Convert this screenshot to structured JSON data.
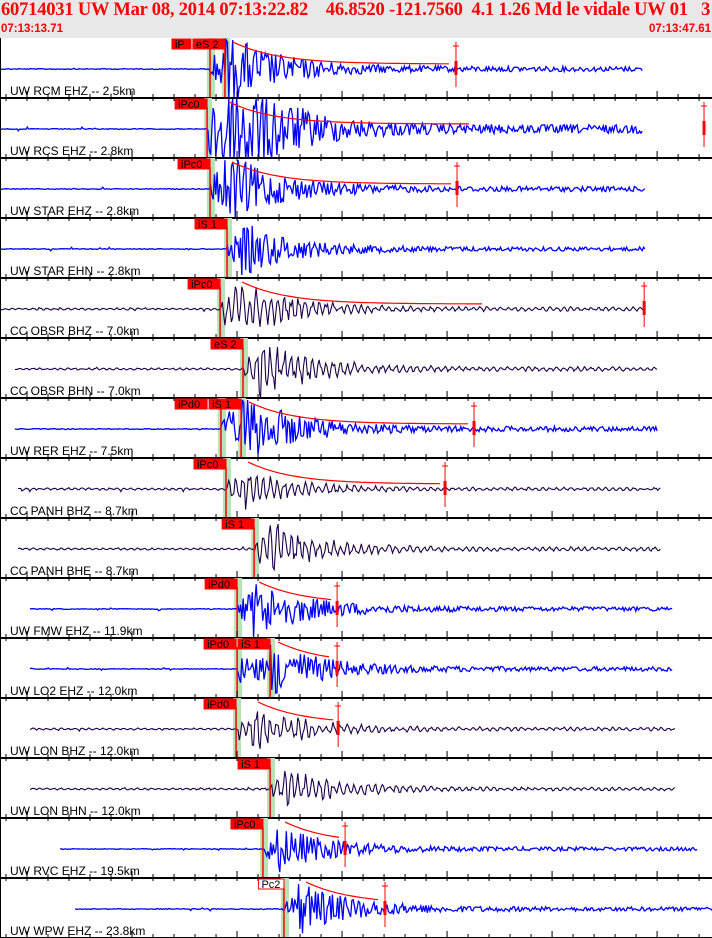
{
  "header": {
    "title": "60714031 UW Mar 08, 2014 07:13:22.82    46.8520 -121.7560  4.1 1.26 Md le vidale UW 01   3",
    "start_time": "07:13:13.71",
    "end_time": "07:13:47.61"
  },
  "colors": {
    "header_text": "#ff0000",
    "header_bg": "#e8e8e8",
    "short_period_trace": "#0000ff",
    "broadband_trace": "#1c0048",
    "pick": "#ff0000",
    "pick_window": "#b8e2b8",
    "coda_fit": "#ff0000"
  },
  "traces": [
    {
      "label": "UW RCM EHZ -- 2.5km",
      "type": "short_period",
      "start": "07:13:13.71",
      "end": "07:13:44.33",
      "amp": 1.0,
      "picks": [
        {
          "label": "iP",
          "time": "07:13:23.71"
        },
        {
          "label": "eS 2",
          "time": "07:13:24.42"
        }
      ],
      "amp_marker": "07:13:35.42"
    },
    {
      "label": "UW RCS EHZ -- 2.8km",
      "type": "short_period",
      "start": "07:13:13.71",
      "end": "07:13:44.33",
      "amp": 2.2,
      "picks": [
        {
          "label": "iPc0",
          "time": "07:13:23.57"
        }
      ],
      "amp_marker": "07:13:47.23"
    },
    {
      "label": "UW STAR EHZ -- 2.8km",
      "type": "short_period",
      "start": "07:13:13.71",
      "end": "07:13:44.43",
      "amp": 1.0,
      "picks": [
        {
          "label": "iPc0",
          "time": "07:13:23.71"
        }
      ],
      "amp_marker": "07:13:35.47"
    },
    {
      "label": "UW STAR EHN -- 2.8km",
      "type": "short_period",
      "start": "07:13:13.71",
      "end": "07:13:44.43",
      "amp": 0.7,
      "picks": [
        {
          "label": "iS 1",
          "time": "07:13:24.52"
        }
      ],
      "amp_marker": null
    },
    {
      "label": "CC OBSR BHZ -- 7.0km",
      "type": "broadband",
      "start": "07:13:13.71",
      "end": "07:13:44.43",
      "amp": 0.9,
      "picks": [
        {
          "label": "iPc0",
          "time": "07:13:24.19"
        }
      ],
      "amp_marker": "07:13:44.38"
    },
    {
      "label": "CC OBSR BHN -- 7.0km",
      "type": "broadband",
      "start": "07:13:14.42",
      "end": "07:13:45.00",
      "amp": 0.9,
      "picks": [
        {
          "label": "eS 2",
          "time": "07:13:25.28"
        }
      ],
      "amp_marker": null
    },
    {
      "label": "UW RER EHZ -- 7.5km",
      "type": "short_period",
      "start": "07:13:14.42",
      "end": "07:13:45.04",
      "amp": 1.0,
      "picks": [
        {
          "label": "iPd0",
          "time": "07:13:24.23"
        },
        {
          "label": "iS 1",
          "time": "07:13:25.19"
        }
      ],
      "amp_marker": "07:13:36.28"
    },
    {
      "label": "CC PANH BHZ -- 8.7km",
      "type": "broadband",
      "start": "07:13:14.57",
      "end": "07:13:45.19",
      "amp": 0.6,
      "picks": [
        {
          "label": "iPc0",
          "time": "07:13:24.47"
        }
      ],
      "amp_marker": "07:13:34.90"
    },
    {
      "label": "CC PANH BHE -- 8.7km",
      "type": "broadband",
      "start": "07:13:14.57",
      "end": "07:13:45.19",
      "amp": 0.8,
      "picks": [
        {
          "label": "iS 1",
          "time": "07:13:25.81"
        }
      ],
      "amp_marker": null
    },
    {
      "label": "UW FMW EHZ -- 11.9km",
      "type": "short_period",
      "start": "07:13:15.14",
      "end": "07:13:45.76",
      "amp": 0.8,
      "picks": [
        {
          "label": "iPd0",
          "time": "07:13:25.00"
        }
      ],
      "amp_marker": "07:13:29.76"
    },
    {
      "label": "UW LO2 EHZ -- 12.0km",
      "type": "short_period",
      "start": "07:13:15.14",
      "end": "07:13:45.76",
      "amp": 0.8,
      "picks": [
        {
          "label": "iPd0",
          "time": "07:13:25.00"
        },
        {
          "label": "iS 1",
          "time": "07:13:26.57"
        }
      ],
      "amp_marker": "07:13:29.76"
    },
    {
      "label": "UW LON BHZ -- 12.0km",
      "type": "broadband",
      "start": "07:13:15.14",
      "end": "07:13:45.86",
      "amp": 0.7,
      "picks": [
        {
          "label": "iPd0",
          "time": "07:13:24.95"
        }
      ],
      "amp_marker": "07:13:29.81"
    },
    {
      "label": "UW LON BHN -- 12.0km",
      "type": "broadband",
      "start": "07:13:15.14",
      "end": "07:13:45.86",
      "amp": 0.6,
      "picks": [
        {
          "label": "iS 1",
          "time": "07:13:26.57"
        }
      ],
      "amp_marker": null
    },
    {
      "label": "UW RVC EHZ -- 19.5km",
      "type": "short_period",
      "start": "07:13:16.57",
      "end": "07:13:46.90",
      "amp": 0.6,
      "picks": [
        {
          "label": "iPc0",
          "time": "07:13:26.23"
        }
      ],
      "amp_marker": "07:13:30.14"
    },
    {
      "label": "UW WPW EHZ -- 23.8km",
      "type": "short_period",
      "start": "07:13:17.28",
      "end": "07:13:47.61",
      "amp": 0.7,
      "picks": [
        {
          "label": "Pc2",
          "time": "07:13:27.23",
          "unconfirmed": true
        }
      ],
      "amp_marker": "07:13:32.04"
    }
  ]
}
